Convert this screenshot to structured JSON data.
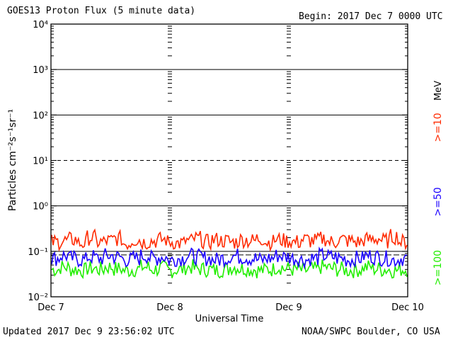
{
  "header": {
    "title": "GOES13 Proton Flux (5 minute data)",
    "begin": "Begin: 2017 Dec 7 0000 UTC"
  },
  "footer": {
    "updated": "Updated 2017 Dec  9 23:56:02 UTC",
    "credit": "NOAA/SWPC Boulder, CO USA"
  },
  "legend": {
    "unit": "MeV",
    "items": [
      {
        "label": ">=10",
        "color": "#ff2a00"
      },
      {
        "label": ">=50",
        "color": "#1a00ff"
      },
      {
        "label": ">=100",
        "color": "#22ee00"
      }
    ]
  },
  "chart_data": {
    "type": "line",
    "title": "GOES13 Proton Flux (5 minute data)",
    "xlabel": "Universal Time",
    "ylabel": "Particles cm⁻²s⁻¹sr⁻¹",
    "y_scale": "log",
    "ylim": [
      0.01,
      10000
    ],
    "y_ticks": [
      "10⁻²",
      "10⁻¹",
      "10⁰",
      "10¹",
      "10²",
      "10³",
      "10⁴"
    ],
    "x_ticks": [
      "Dec 7",
      "Dec 8",
      "Dec 9",
      "Dec 10"
    ],
    "grid": "horizontal at decades (10⁻¹ dashed-dotted threshold band, 10¹ dashed), dotted vertical day markers",
    "series": [
      {
        "name": ">=10",
        "color": "#ff2a00",
        "values": [
          0.16,
          0.17,
          0.18,
          0.15,
          0.2,
          0.16,
          0.17,
          0.19,
          0.15,
          0.18,
          0.16,
          0.17,
          0.18,
          0.16,
          0.15,
          0.17,
          0.19,
          0.16,
          0.18,
          0.17,
          0.16,
          0.18,
          0.17,
          0.19,
          0.16,
          0.18,
          0.17,
          0.16,
          0.18,
          0.17,
          0.19,
          0.16,
          0.18,
          0.17,
          0.16,
          0.18,
          0.19,
          0.17,
          0.21,
          0.16
        ]
      },
      {
        "name": ">=50",
        "color": "#1a00ff",
        "values": [
          0.07,
          0.08,
          0.07,
          0.065,
          0.075,
          0.07,
          0.08,
          0.075,
          0.065,
          0.07,
          0.08,
          0.07,
          0.075,
          0.065,
          0.07,
          0.08,
          0.075,
          0.07,
          0.065,
          0.07,
          0.08,
          0.075,
          0.07,
          0.065,
          0.07,
          0.08,
          0.075,
          0.07,
          0.065,
          0.07,
          0.08,
          0.075,
          0.07,
          0.065,
          0.07,
          0.08,
          0.075,
          0.07,
          0.065,
          0.07
        ]
      },
      {
        "name": ">=100",
        "color": "#22ee00",
        "values": [
          0.04,
          0.045,
          0.04,
          0.038,
          0.042,
          0.04,
          0.045,
          0.041,
          0.038,
          0.04,
          0.045,
          0.04,
          0.042,
          0.038,
          0.04,
          0.045,
          0.041,
          0.04,
          0.038,
          0.04,
          0.045,
          0.042,
          0.04,
          0.038,
          0.04,
          0.045,
          0.041,
          0.04,
          0.038,
          0.04,
          0.045,
          0.042,
          0.04,
          0.038,
          0.04,
          0.045,
          0.041,
          0.04,
          0.038,
          0.04
        ]
      }
    ]
  }
}
